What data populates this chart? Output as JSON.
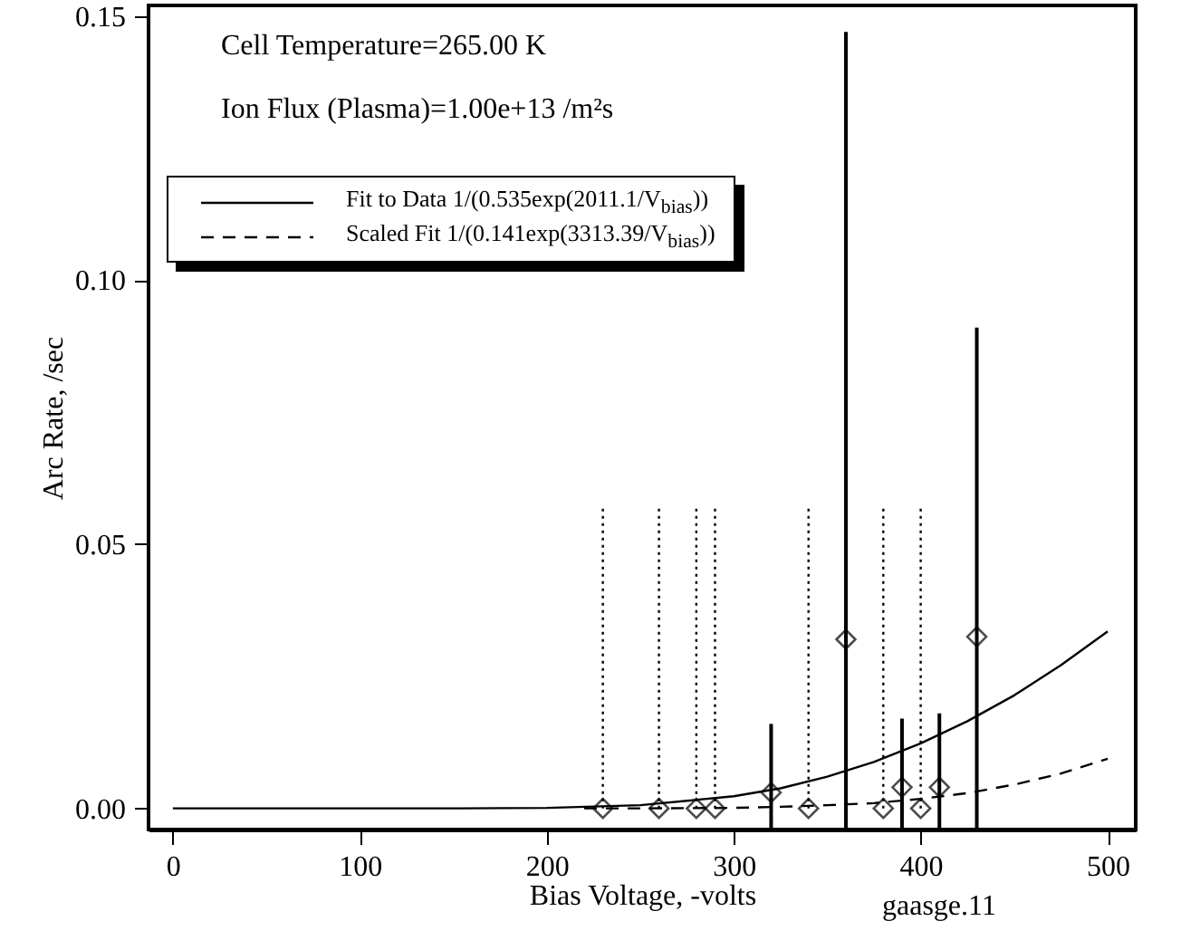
{
  "chart_data": {
    "type": "scatter",
    "xlabel": "Bias Voltage, -volts",
    "ylabel": "Arc Rate, /sec",
    "annotations": [
      "Cell Temperature=265.00 K",
      "Ion Flux (Plasma)=1.00e+13 /m²s",
      "gaasge.11"
    ],
    "xlim": [
      -13,
      515
    ],
    "xticks": [
      0,
      100,
      200,
      300,
      400,
      500
    ],
    "ylim": [
      -0.004,
      0.152
    ],
    "yticks": [
      {
        "value": 0,
        "label": "0.00"
      },
      {
        "value": 0.05,
        "label": "0.05"
      },
      {
        "value": 0.1,
        "label": "0.10"
      },
      {
        "value": 0.15,
        "label": "0.15"
      }
    ],
    "grid": false,
    "legend": "top left",
    "marker": "diamond",
    "series": [
      {
        "color": "#000000",
        "line_style": "solid",
        "x": [
          320,
          360,
          390,
          410,
          430
        ],
        "values": [
          0.003,
          0.032,
          0.004,
          0.004,
          0.0325
        ],
        "errors": [
          [
            -0.004,
            0.016
          ],
          [
            -0.004,
            0.147
          ],
          [
            -0.004,
            0.017
          ],
          [
            -0.004,
            0.018
          ],
          [
            -0.004,
            0.091
          ]
        ]
      },
      {
        "color": "#000000",
        "line_style": "dotted",
        "x": [
          230,
          260,
          280,
          290,
          340,
          380,
          400
        ],
        "values": [
          0,
          0,
          0,
          0,
          0,
          0,
          0
        ],
        "errors": [
          [
            0,
            0.057
          ],
          [
            0,
            0.057
          ],
          [
            0,
            0.057
          ],
          [
            0,
            0.057
          ],
          [
            0,
            0.057
          ],
          [
            0,
            0.057
          ],
          [
            0,
            0.057
          ]
        ]
      },
      {
        "type": "line",
        "name": "Fit to Data 1/(0.535exp(2011.1/V$_{bias}$))",
        "color": "#000000",
        "line_style": "solid",
        "marker": "none",
        "x": [
          0,
          150,
          200,
          250,
          300,
          325,
          350,
          375,
          400,
          425,
          450,
          475,
          500
        ],
        "values": [
          0,
          0,
          0.0001,
          0.0006,
          0.0023,
          0.0038,
          0.006,
          0.0088,
          0.0123,
          0.0165,
          0.0214,
          0.0271,
          0.0335
        ]
      },
      {
        "type": "line",
        "name": "Scaled Fit 1/(0.141exp(3313.39/V$_{bias}$))",
        "color": "#000000",
        "line_style": "dashed",
        "marker": "none",
        "x": [
          220,
          250,
          300,
          325,
          350,
          375,
          400,
          425,
          450,
          475,
          500
        ],
        "values": [
          0,
          0,
          0.0001,
          0.0003,
          0.0006,
          0.001,
          0.0018,
          0.0029,
          0.0045,
          0.0066,
          0.0094
        ]
      }
    ]
  }
}
